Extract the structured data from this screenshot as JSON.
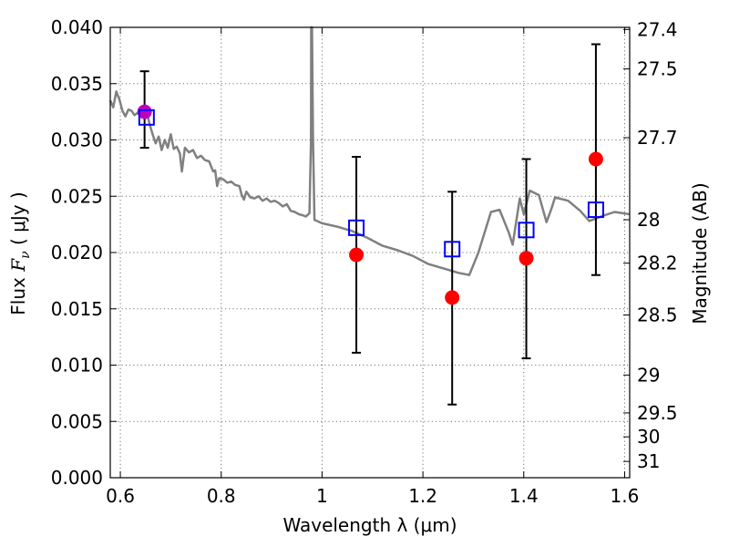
{
  "chart_data": {
    "type": "scatter",
    "xlabel": "Wavelength  λ (μm)",
    "ylabel_text": "Flux  ",
    "ylabel_symbol": "F",
    "ylabel_sub": "ν",
    "ylabel_units": "  ( μJy )",
    "y2label": "Magnitude (AB)",
    "xlim": [
      0.58,
      1.61
    ],
    "ylim": [
      0.0,
      0.04
    ],
    "grid": true,
    "x_ticks": [
      {
        "value": 0.6,
        "label": "0.6"
      },
      {
        "value": 0.8,
        "label": "0.8"
      },
      {
        "value": 1.0,
        "label": "1"
      },
      {
        "value": 1.2,
        "label": "1.2"
      },
      {
        "value": 1.4,
        "label": "1.4"
      },
      {
        "value": 1.6,
        "label": "1.6"
      }
    ],
    "y_ticks": [
      {
        "value": 0.0,
        "label": "0.000"
      },
      {
        "value": 0.005,
        "label": "0.005"
      },
      {
        "value": 0.01,
        "label": "0.010"
      },
      {
        "value": 0.015,
        "label": "0.015"
      },
      {
        "value": 0.02,
        "label": "0.020"
      },
      {
        "value": 0.025,
        "label": "0.025"
      },
      {
        "value": 0.03,
        "label": "0.030"
      },
      {
        "value": 0.035,
        "label": "0.035"
      },
      {
        "value": 0.04,
        "label": "0.040"
      }
    ],
    "y2_ticks": [
      {
        "mag": 27.4,
        "label": "27.4"
      },
      {
        "mag": 27.5,
        "label": "27.5"
      },
      {
        "mag": 27.7,
        "label": "27.7"
      },
      {
        "mag": 28.0,
        "label": "28"
      },
      {
        "mag": 28.2,
        "label": "28.2"
      },
      {
        "mag": 28.5,
        "label": "28.5"
      },
      {
        "mag": 29.0,
        "label": "29"
      },
      {
        "mag": 29.5,
        "label": "29.5"
      },
      {
        "mag": 30.0,
        "label": "30"
      },
      {
        "mag": 31.0,
        "label": "31"
      }
    ],
    "colors": {
      "model": "#808080",
      "observed": "#ff0000",
      "observed_first": "#bf00bf",
      "model_bands": "#0000ff",
      "errorbar": "#000000"
    },
    "series": [
      {
        "kind": "model_spectrum",
        "points": [
          [
            0.58,
            0.0335
          ],
          [
            0.586,
            0.0329
          ],
          [
            0.592,
            0.0343
          ],
          [
            0.598,
            0.0336
          ],
          [
            0.604,
            0.0326
          ],
          [
            0.61,
            0.0321
          ],
          [
            0.616,
            0.0327
          ],
          [
            0.622,
            0.0326
          ],
          [
            0.628,
            0.0322
          ],
          [
            0.634,
            0.0324
          ],
          [
            0.64,
            0.0327
          ],
          [
            0.646,
            0.0321
          ],
          [
            0.652,
            0.0326
          ],
          [
            0.658,
            0.0314
          ],
          [
            0.664,
            0.0305
          ],
          [
            0.67,
            0.0297
          ],
          [
            0.676,
            0.0303
          ],
          [
            0.682,
            0.0291
          ],
          [
            0.688,
            0.03
          ],
          [
            0.694,
            0.0293
          ],
          [
            0.7,
            0.0305
          ],
          [
            0.706,
            0.0292
          ],
          [
            0.712,
            0.0294
          ],
          [
            0.718,
            0.0288
          ],
          [
            0.722,
            0.0272
          ],
          [
            0.728,
            0.0293
          ],
          [
            0.736,
            0.0289
          ],
          [
            0.744,
            0.0291
          ],
          [
            0.752,
            0.0284
          ],
          [
            0.76,
            0.0286
          ],
          [
            0.768,
            0.0282
          ],
          [
            0.776,
            0.0281
          ],
          [
            0.784,
            0.0272
          ],
          [
            0.788,
            0.0273
          ],
          [
            0.792,
            0.0259
          ],
          [
            0.796,
            0.0266
          ],
          [
            0.804,
            0.0265
          ],
          [
            0.812,
            0.0262
          ],
          [
            0.82,
            0.0263
          ],
          [
            0.828,
            0.026
          ],
          [
            0.836,
            0.0259
          ],
          [
            0.84,
            0.0252
          ],
          [
            0.845,
            0.0247
          ],
          [
            0.85,
            0.0254
          ],
          [
            0.858,
            0.0249
          ],
          [
            0.866,
            0.0248
          ],
          [
            0.874,
            0.025
          ],
          [
            0.882,
            0.0246
          ],
          [
            0.89,
            0.0248
          ],
          [
            0.898,
            0.0245
          ],
          [
            0.906,
            0.0246
          ],
          [
            0.914,
            0.0244
          ],
          [
            0.922,
            0.0241
          ],
          [
            0.93,
            0.0243
          ],
          [
            0.938,
            0.0237
          ],
          [
            0.946,
            0.0236
          ],
          [
            0.954,
            0.0234
          ],
          [
            0.962,
            0.0233
          ],
          [
            0.968,
            0.0232
          ],
          [
            0.975,
            0.0235
          ],
          [
            0.978,
            0.03
          ],
          [
            0.9785,
            0.04
          ],
          [
            0.98,
            0.04
          ],
          [
            0.982,
            0.03
          ],
          [
            0.985,
            0.0229
          ],
          [
            0.99,
            0.0228
          ],
          [
            1.0,
            0.0226
          ],
          [
            1.03,
            0.0223
          ],
          [
            1.06,
            0.0219
          ],
          [
            1.09,
            0.0213
          ],
          [
            1.12,
            0.0206
          ],
          [
            1.15,
            0.0202
          ],
          [
            1.18,
            0.0197
          ],
          [
            1.21,
            0.019
          ],
          [
            1.24,
            0.0186
          ],
          [
            1.27,
            0.0182
          ],
          [
            1.292,
            0.018
          ],
          [
            1.31,
            0.02
          ],
          [
            1.335,
            0.0236
          ],
          [
            1.352,
            0.0238
          ],
          [
            1.37,
            0.0218
          ],
          [
            1.378,
            0.0207
          ],
          [
            1.392,
            0.0248
          ],
          [
            1.4,
            0.0234
          ],
          [
            1.412,
            0.0255
          ],
          [
            1.43,
            0.0251
          ],
          [
            1.445,
            0.0227
          ],
          [
            1.455,
            0.0239
          ],
          [
            1.462,
            0.0249
          ],
          [
            1.488,
            0.0246
          ],
          [
            1.512,
            0.0237
          ],
          [
            1.53,
            0.0228
          ],
          [
            1.56,
            0.0233
          ],
          [
            1.58,
            0.0236
          ],
          [
            1.61,
            0.0234
          ]
        ]
      },
      {
        "kind": "observed_flux",
        "points": [
          {
            "x": 0.648,
            "y": 0.0325,
            "err_low": 0.0293,
            "err_high": 0.0361
          },
          {
            "x": 1.068,
            "y": 0.0198,
            "err_low": 0.0111,
            "err_high": 0.0285
          },
          {
            "x": 1.258,
            "y": 0.016,
            "err_low": 0.0065,
            "err_high": 0.0254
          },
          {
            "x": 1.405,
            "y": 0.0195,
            "err_low": 0.0106,
            "err_high": 0.0283
          },
          {
            "x": 1.543,
            "y": 0.0283,
            "err_low": 0.018,
            "err_high": 0.0385
          }
        ]
      },
      {
        "kind": "model_band_flux",
        "points": [
          {
            "x": 0.652,
            "y": 0.032
          },
          {
            "x": 1.068,
            "y": 0.0222
          },
          {
            "x": 1.258,
            "y": 0.0203
          },
          {
            "x": 1.405,
            "y": 0.022
          },
          {
            "x": 1.543,
            "y": 0.0238
          }
        ]
      }
    ]
  }
}
